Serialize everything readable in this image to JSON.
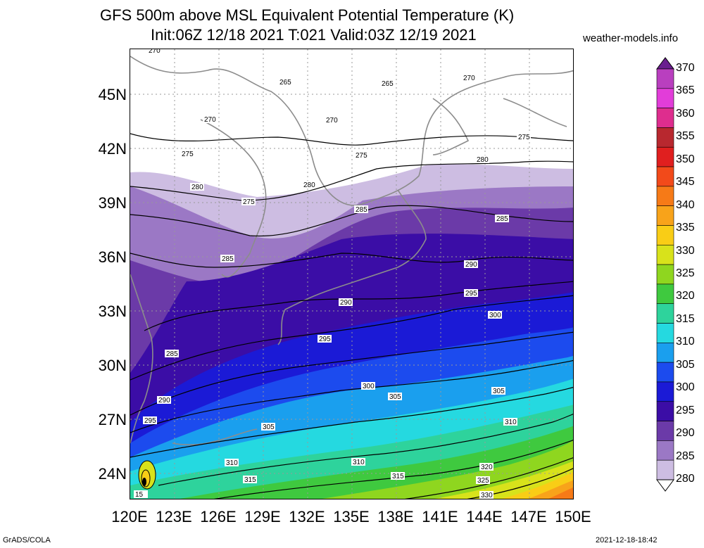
{
  "header": {
    "title_line1": "GFS 500m above MSL Equivalent Potential Temperature (K)",
    "title_line2": "Init:06Z 12/18 2021 T:021 Valid:03Z 12/19 2021",
    "site": "weather-models.info"
  },
  "axes": {
    "lat_labels": [
      "45N",
      "42N",
      "39N",
      "36N",
      "33N",
      "30N",
      "27N",
      "24N"
    ],
    "lon_labels": [
      "120E",
      "123E",
      "126E",
      "129E",
      "132E",
      "135E",
      "138E",
      "141E",
      "144E",
      "147E",
      "150E"
    ]
  },
  "colorbar": {
    "levels": [
      "370",
      "365",
      "360",
      "355",
      "350",
      "345",
      "340",
      "335",
      "330",
      "325",
      "320",
      "315",
      "310",
      "305",
      "300",
      "295",
      "290",
      "285",
      "280"
    ],
    "colors": [
      "#6a1f8f",
      "#b93fbf",
      "#e23dd9",
      "#de2d8e",
      "#b8282f",
      "#e01f1f",
      "#f24a1a",
      "#f67a17",
      "#f8a31a",
      "#f9cd16",
      "#d8e21b",
      "#8fd61f",
      "#3fc93f",
      "#2ed39c",
      "#25d9e0",
      "#1a9fee",
      "#1c4bee",
      "#1b1ad6",
      "#3b0da6",
      "#6b3aa8",
      "#9b78c5",
      "#cdbde2",
      "#ffffff"
    ]
  },
  "contour_labels": [
    {
      "text": "270"
    },
    {
      "text": "265"
    },
    {
      "text": "265"
    },
    {
      "text": "270"
    },
    {
      "text": "270"
    },
    {
      "text": "270"
    },
    {
      "text": "275"
    },
    {
      "text": "275"
    },
    {
      "text": "275"
    },
    {
      "text": "280"
    },
    {
      "text": "280"
    },
    {
      "text": "280"
    },
    {
      "text": "275"
    },
    {
      "text": "285"
    },
    {
      "text": "285"
    },
    {
      "text": "285"
    },
    {
      "text": "290"
    },
    {
      "text": "290"
    },
    {
      "text": "295"
    },
    {
      "text": "300"
    },
    {
      "text": "295"
    },
    {
      "text": "285"
    },
    {
      "text": "290"
    },
    {
      "text": "295"
    },
    {
      "text": "300"
    },
    {
      "text": "305"
    },
    {
      "text": "305"
    },
    {
      "text": "310"
    },
    {
      "text": "305"
    },
    {
      "text": "310"
    },
    {
      "text": "310"
    },
    {
      "text": "315"
    },
    {
      "text": "315"
    },
    {
      "text": "320"
    },
    {
      "text": "325"
    },
    {
      "text": "330"
    },
    {
      "text": "15"
    }
  ],
  "footer": {
    "left": "GrADS/COLA",
    "right": "2021-12-18-18:42"
  }
}
